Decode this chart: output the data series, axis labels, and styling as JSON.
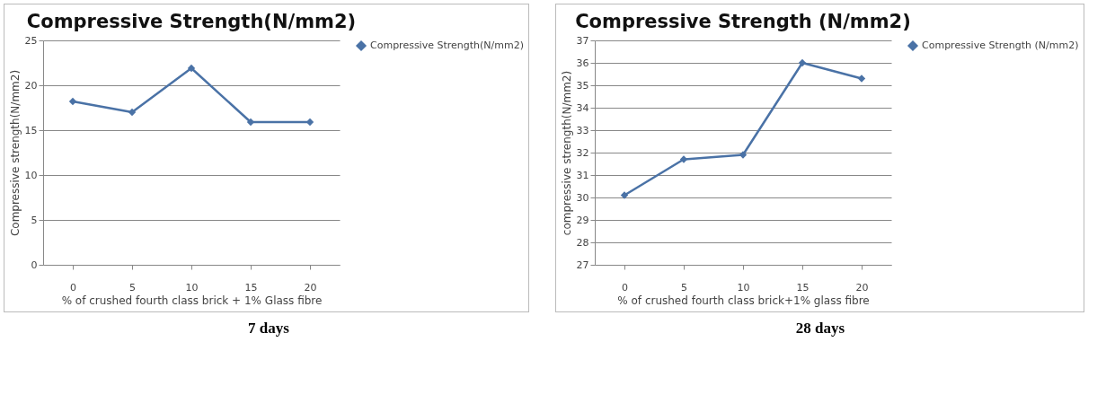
{
  "chart_data": [
    {
      "type": "line",
      "title": "Compressive Strength(N/mm2)",
      "xlabel": "% of crushed fourth class brick + 1% Glass fibre",
      "ylabel": "Compressive strength(N/mm2)",
      "categories": [
        "0",
        "5",
        "10",
        "15",
        "20"
      ],
      "series": [
        {
          "name": "Compressive Strength(N/mm2)",
          "color": "#4a72a6",
          "values": [
            18.2,
            17.0,
            21.9,
            15.9,
            15.9
          ]
        }
      ],
      "ylim": [
        0,
        25
      ],
      "yticks": [
        0,
        5,
        10,
        15,
        20,
        25
      ],
      "grid": "y",
      "legend": "right",
      "marker": "diamond",
      "line_style": "solid",
      "annotations": [
        "7 days"
      ]
    },
    {
      "type": "line",
      "title": "Compressive Strength (N/mm2)",
      "xlabel": "% of crushed fourth class brick+1% glass fibre",
      "ylabel": "compressive strength(N/mm2)",
      "categories": [
        "0",
        "5",
        "10",
        "15",
        "20"
      ],
      "series": [
        {
          "name": "Compressive Strength (N/mm2)",
          "color": "#4a72a6",
          "values": [
            30.1,
            31.7,
            31.9,
            36.0,
            35.3
          ]
        }
      ],
      "ylim": [
        27,
        37
      ],
      "yticks": [
        27,
        28,
        29,
        30,
        31,
        32,
        33,
        34,
        35,
        36,
        37
      ],
      "grid": "y",
      "legend": "right",
      "marker": "diamond",
      "line_style": "solid",
      "annotations": [
        "28 days"
      ]
    }
  ]
}
